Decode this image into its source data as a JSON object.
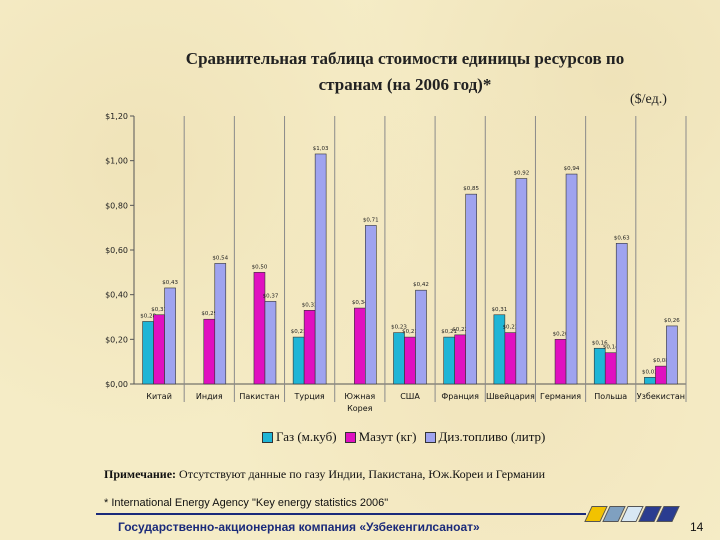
{
  "title_line1": "Сравнительная таблица стоимости единицы ресурсов по",
  "title_line2": "странам (на 2006 год)*",
  "unit_label": "($/ед.)",
  "note_label": "Примечание:",
  "note_text": " Отсутствуют данные по газу Индии, Пакистана, Юж.Кореи и Германии",
  "source": "* International Energy Agency \"Key energy statistics 2006\"",
  "footer_org": "Государственно-акционерная компания «Узбекенгилсаноат»",
  "page_number": "14",
  "colors": {
    "gas": "#1fb5d6",
    "mazut": "#e010c0",
    "diesel": "#9fa3ef",
    "deco": [
      "#f2c200",
      "#7fa0c0",
      "#d8e8f4",
      "#2a3c90",
      "#2a3c90"
    ]
  },
  "chart_data": {
    "type": "bar",
    "categories": [
      "Китай",
      "Индия",
      "Пакистан",
      "Турция",
      "Южная Корея",
      "США",
      "Франция",
      "Швейцария",
      "Германия",
      "Польша",
      "Узбекистан"
    ],
    "series": [
      {
        "name": "Газ (м.куб)",
        "key": "gas",
        "values": [
          0.28,
          null,
          null,
          0.21,
          null,
          0.23,
          0.21,
          0.31,
          null,
          0.16,
          0.03
        ]
      },
      {
        "name": "Мазут (кг)",
        "key": "mazut",
        "values": [
          0.31,
          0.29,
          0.5,
          0.33,
          0.34,
          0.21,
          0.22,
          0.23,
          0.2,
          0.14,
          0.08
        ]
      },
      {
        "name": "Диз.топливо (литр)",
        "key": "diesel",
        "values": [
          0.43,
          0.54,
          0.37,
          1.03,
          0.71,
          0.42,
          0.85,
          0.92,
          0.94,
          0.63,
          0.26
        ]
      }
    ],
    "bar_labels": {
      "gas": [
        "$0,28",
        null,
        null,
        "$0,21",
        null,
        "$0,23",
        "$0,21",
        "$0,31",
        null,
        "$0,16",
        "$0,03"
      ],
      "mazut": [
        "$0,31",
        "$0,29",
        "$0,50",
        "$0,33",
        "$0,34",
        "$0,21",
        "$0,22",
        "$0,23",
        "$0,20",
        "$0,14",
        "$0,08"
      ],
      "diesel": [
        "$0,43",
        "$0,54",
        "$0,37",
        "$1,03",
        "$0,71",
        "$0,42",
        "$0,85",
        "$0,92",
        "$0,94",
        "$0,63",
        "$0,26"
      ]
    },
    "yticks": [
      "$0,00",
      "$0,20",
      "$0,40",
      "$0,60",
      "$0,80",
      "$1,00",
      "$1,20"
    ],
    "ylim": [
      0,
      1.2
    ],
    "grid": false,
    "category_dividers": true,
    "legend_position": "bottom"
  }
}
